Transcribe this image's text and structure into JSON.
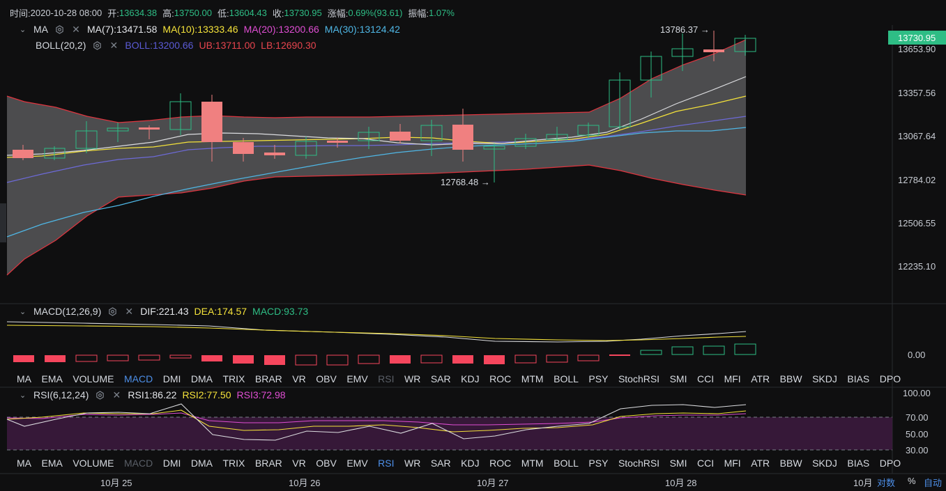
{
  "header": {
    "time_label": "时间:",
    "time_value": "2020-10-28 08:00",
    "open_label": "开:",
    "open_value": "13634.38",
    "high_label": "高:",
    "high_value": "13750.00",
    "low_label": "低:",
    "low_value": "13604.43",
    "close_label": "收:",
    "close_value": "13730.95",
    "change_label": "涨幅:",
    "change_value": "0.69%(93.61)",
    "amp_label": "振幅:",
    "amp_value": "1.07%"
  },
  "ma_legend": {
    "name": "MA",
    "ma7": "MA(7):13471.58",
    "ma10": "MA(10):13333.46",
    "ma20": "MA(20):13200.66",
    "ma30": "MA(30):13124.42"
  },
  "boll_legend": {
    "name": "BOLL(20,2)",
    "boll": "BOLL:13200.66",
    "ub": "UB:13711.00",
    "lb": "LB:12690.30"
  },
  "macd_legend": {
    "name": "MACD(12,26,9)",
    "dif": "DIF:221.43",
    "dea": "DEA:174.57",
    "macd": "MACD:93.73"
  },
  "rsi_legend": {
    "name": "RSI(6,12,24)",
    "rsi1": "RSI1:86.22",
    "rsi2": "RSI2:77.50",
    "rsi3": "RSI3:72.98"
  },
  "price_axis": [
    "13653.90",
    "13357.56",
    "13067.64",
    "12784.02",
    "12506.55",
    "12235.10"
  ],
  "current_price": "13730.95",
  "annotations": {
    "high": "13786.37 →",
    "low": "12768.48 →"
  },
  "macd_axis": [
    "0.00"
  ],
  "rsi_axis": [
    "100.00",
    "70.00",
    "50.00",
    "30.00"
  ],
  "indicator_tabs": [
    "MA",
    "EMA",
    "VOLUME",
    "MACD",
    "DMI",
    "DMA",
    "TRIX",
    "BRAR",
    "VR",
    "OBV",
    "EMV",
    "RSI",
    "WR",
    "SAR",
    "KDJ",
    "ROC",
    "MTM",
    "BOLL",
    "PSY",
    "StochRSI",
    "SMI",
    "CCI",
    "MFI",
    "ATR",
    "BBW",
    "SKDJ",
    "BIAS",
    "DPO"
  ],
  "dates": [
    "10月 25",
    "10月 26",
    "10月 27",
    "10月 28",
    "10月"
  ],
  "bottom_controls": {
    "log": "对数",
    "percent": "%",
    "auto": "自动"
  },
  "colors": {
    "up": "#2ebd85",
    "down": "#f6465d",
    "accent": "#4d8fe8"
  }
}
